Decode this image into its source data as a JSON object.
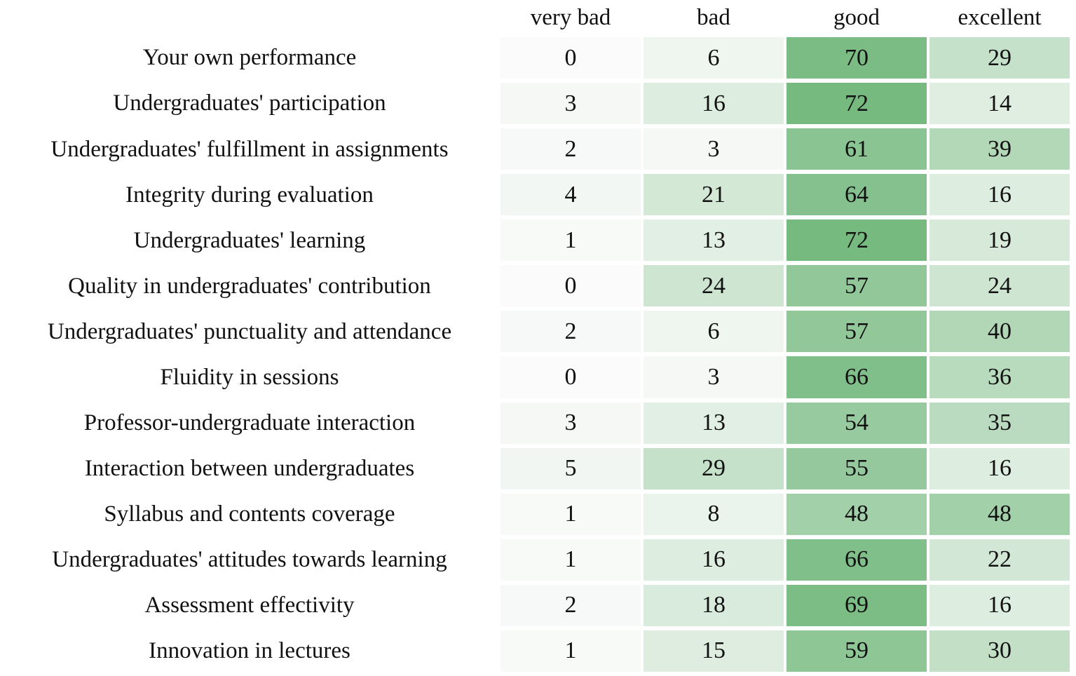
{
  "chart_data": {
    "type": "heatmap",
    "title": "",
    "columns": [
      "very bad",
      "bad",
      "good",
      "excellent"
    ],
    "rows": [
      "Your own performance",
      "Undergraduates' participation",
      "Undergraduates' fulfillment in assignments",
      "Integrity during evaluation",
      "Undergraduates' learning",
      "Quality in undergraduates' contribution",
      "Undergraduates' punctuality and attendance",
      "Fluidity in sessions",
      "Professor-undergraduate interaction",
      "Interaction between undergraduates",
      "Syllabus and contents coverage",
      "Undergraduates' attitudes towards learning",
      "Assessment effectivity",
      "Innovation in lectures"
    ],
    "values": [
      [
        0,
        6,
        70,
        29
      ],
      [
        3,
        16,
        72,
        14
      ],
      [
        2,
        3,
        61,
        39
      ],
      [
        4,
        21,
        64,
        16
      ],
      [
        1,
        13,
        72,
        19
      ],
      [
        0,
        24,
        57,
        24
      ],
      [
        2,
        6,
        57,
        40
      ],
      [
        0,
        3,
        66,
        36
      ],
      [
        3,
        13,
        54,
        35
      ],
      [
        5,
        29,
        55,
        16
      ],
      [
        1,
        8,
        48,
        48
      ],
      [
        1,
        16,
        66,
        22
      ],
      [
        2,
        18,
        69,
        16
      ],
      [
        1,
        15,
        59,
        30
      ]
    ],
    "color_scale": {
      "min_value": 0,
      "max_value": 72,
      "min_color": "#fafbfa",
      "max_color": "#76ba80"
    },
    "cell_text_color": "#111111",
    "background_color": "#ffffff",
    "legend": "none",
    "grid": "white gaps between cells"
  }
}
